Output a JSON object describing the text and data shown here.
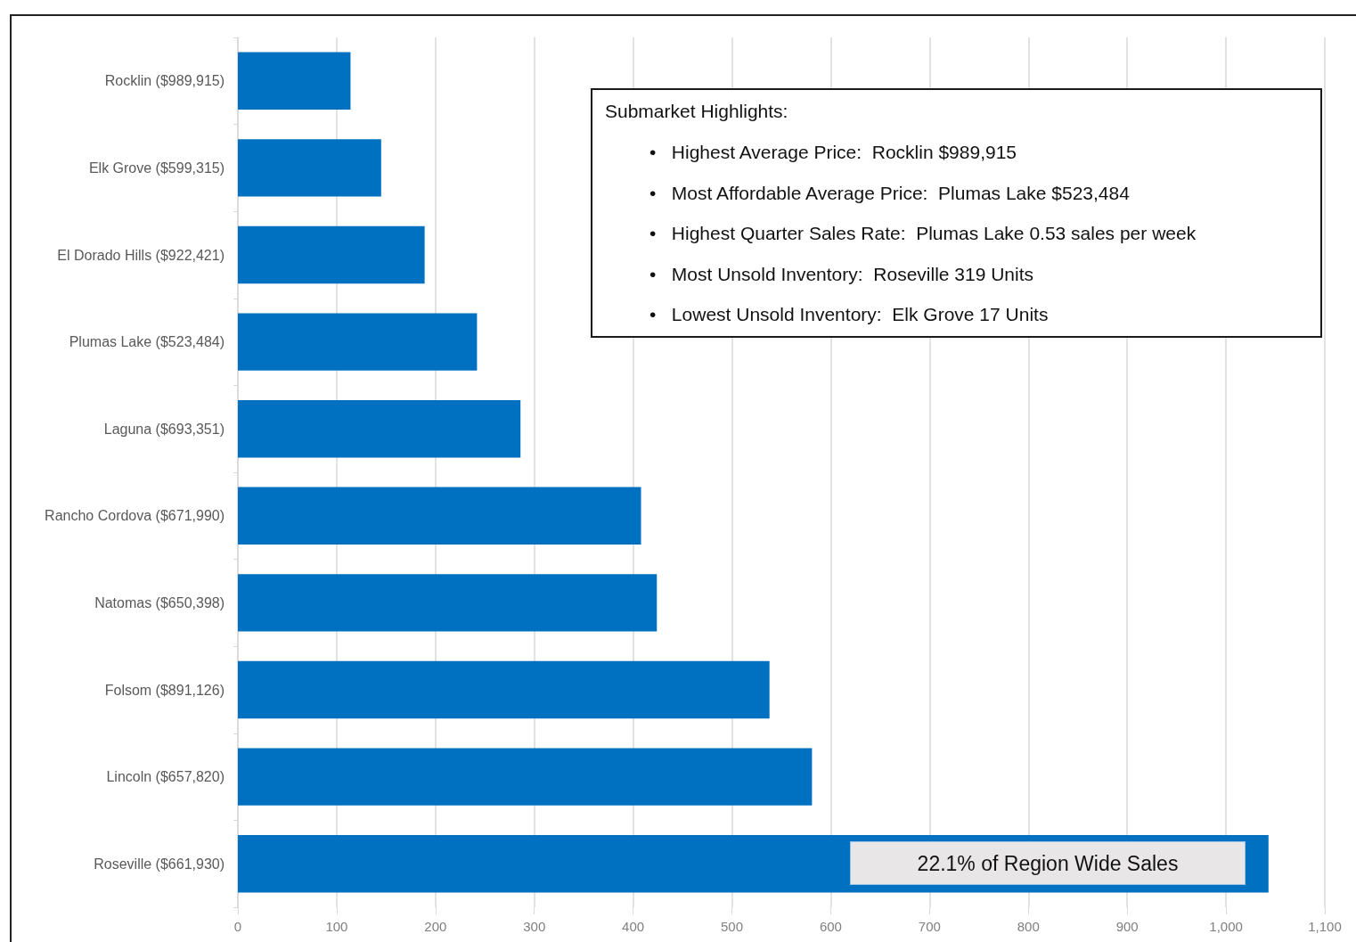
{
  "chart_data": {
    "type": "bar",
    "orientation": "horizontal",
    "categories": [
      "Rocklin ($989,915)",
      "Elk Grove ($599,315)",
      "El Dorado Hills ($922,421)",
      "Plumas Lake ($523,484)",
      "Laguna ($693,351)",
      "Rancho Cordova ($671,990)",
      "Natomas ($650,398)",
      "Folsom ($891,126)",
      "Lincoln ($657,820)",
      "Roseville ($661,930)"
    ],
    "values": [
      114,
      145,
      189,
      242,
      286,
      408,
      424,
      538,
      581,
      1043
    ],
    "color": "#0070c0",
    "xlim": [
      0,
      1100
    ],
    "xticks": [
      0,
      100,
      200,
      300,
      400,
      500,
      600,
      700,
      800,
      900,
      {
        "value": 1000,
        "label": "1,000"
      },
      {
        "value": 1100,
        "label": "1,100"
      }
    ],
    "grid": "x",
    "annotations": [
      "Submarket Highlights:",
      "•   Highest Average Price:  Rocklin $989,915",
      "•   Most Affordable Average Price:  Plumas Lake $523,484",
      "•   Highest Quarter Sales Rate:  Plumas Lake 0.53 sales per week",
      "•   Most Unsold Inventory:  Roseville 319 Units",
      "•   Lowest Unsold Inventory:  Elk Grove 17 Units",
      "22.1% of Region Wide Sales"
    ]
  }
}
